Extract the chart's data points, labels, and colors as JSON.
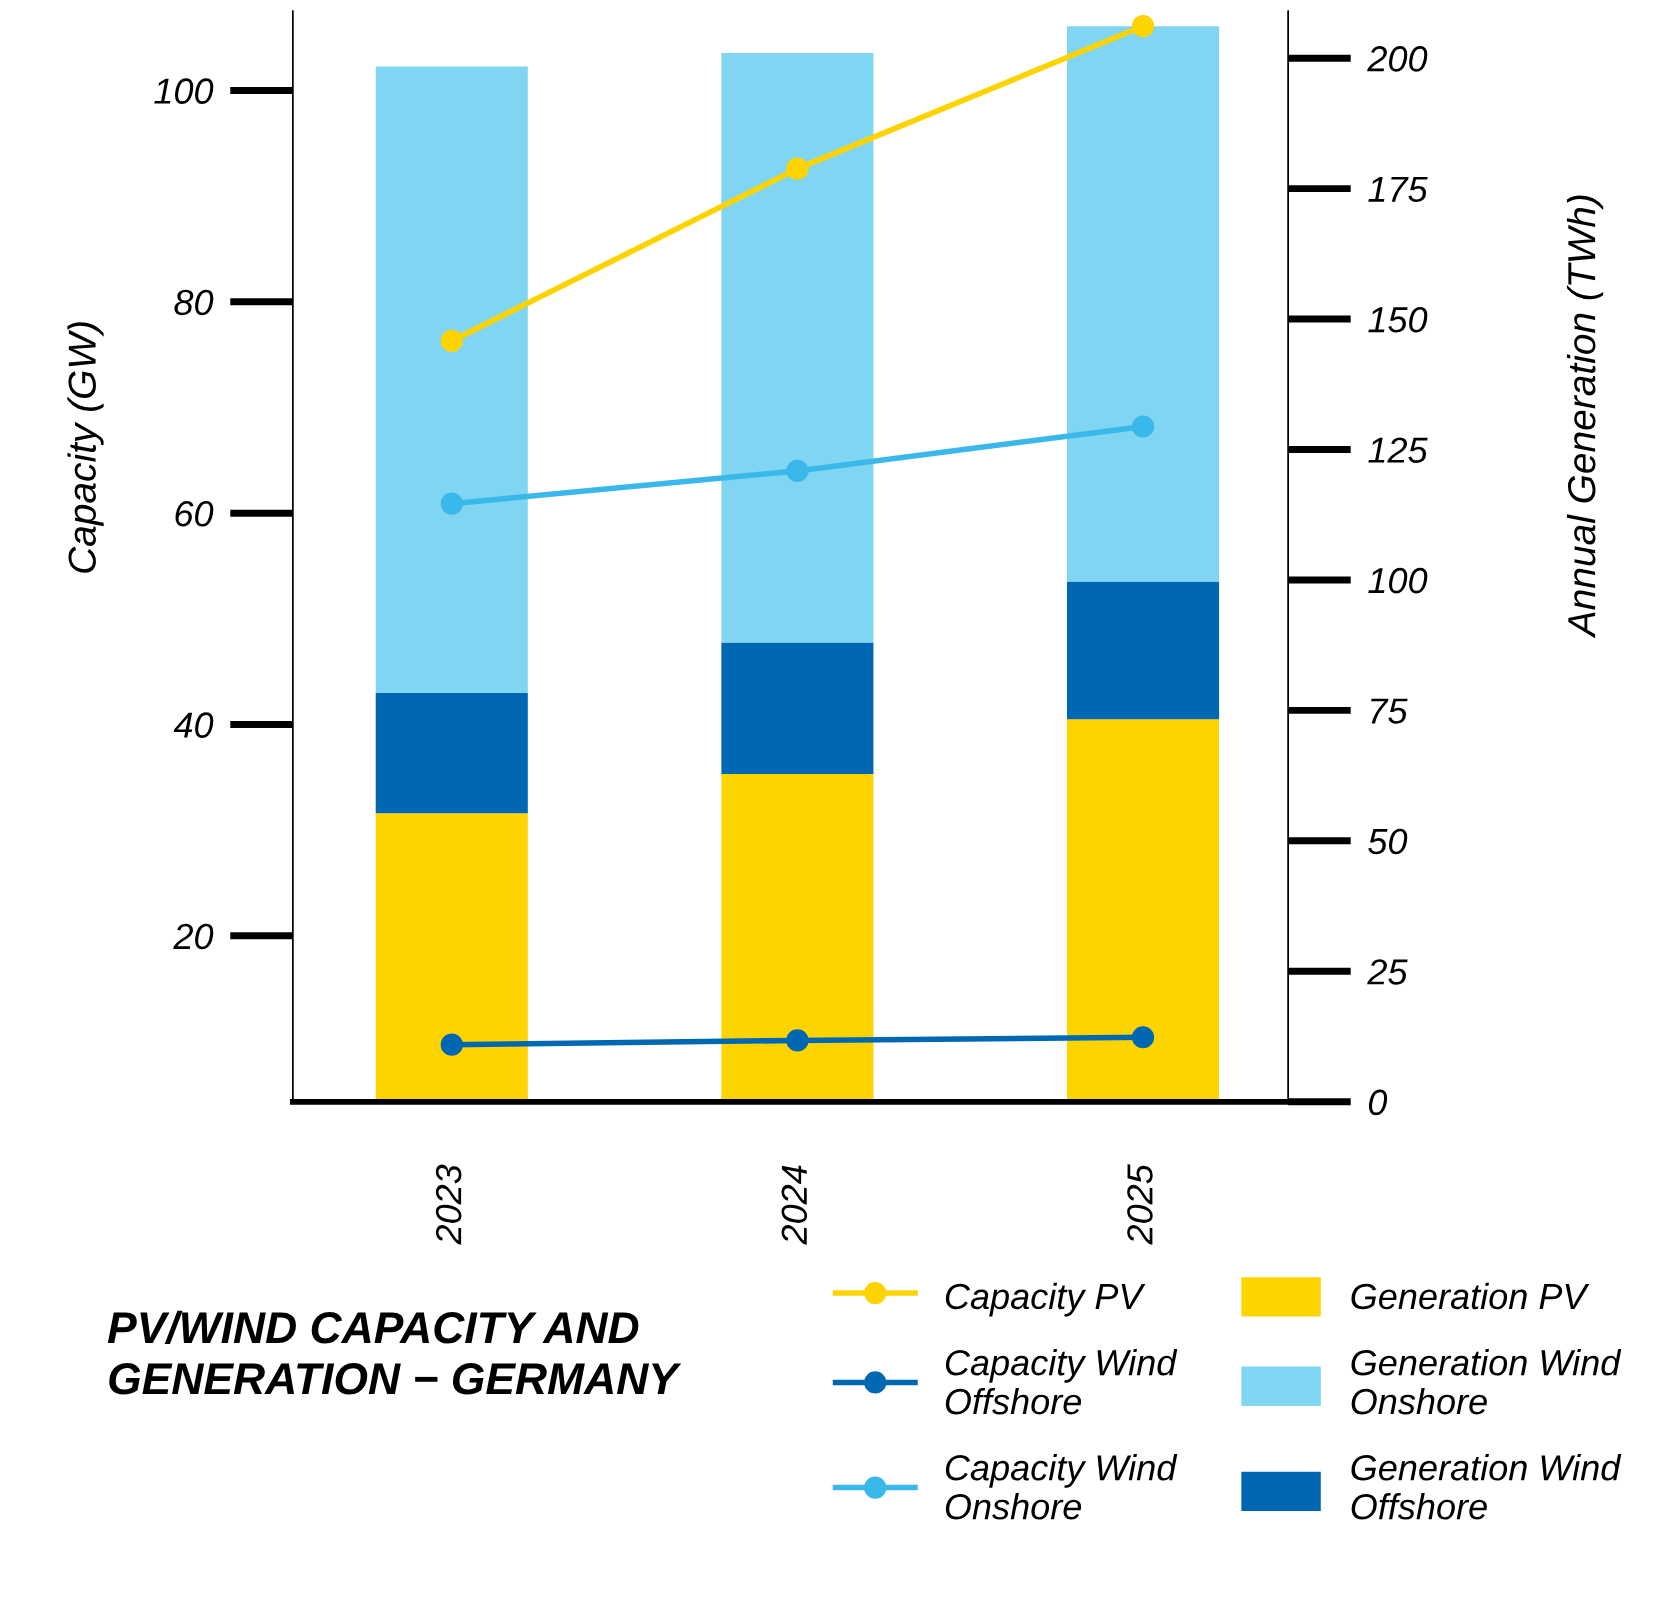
{
  "chart_data": {
    "type": "bar",
    "title": "PV/WIND CAPACITY AND GENERATION − GERMANY",
    "ylabel": "Capacity (GW)",
    "y2label": "Annual Generation (TWh)",
    "categories": [
      "2023",
      "2024",
      "2025"
    ],
    "stacked": true,
    "legend": "bottom",
    "grid": false,
    "marker": "circle",
    "line_style": "solid",
    "ylim": [
      4.3,
      107.5
    ],
    "yticks": [
      20,
      40,
      60,
      80,
      100
    ],
    "y2lim": [
      0,
      209
    ],
    "y2ticks": [
      0,
      25,
      50,
      75,
      100,
      125,
      150,
      175,
      200
    ],
    "series": [
      {
        "name": "Capacity PV",
        "type": "line",
        "axis": "y",
        "color": "#fdd300",
        "values": [
          76.3,
          92.6,
          106.1
        ]
      },
      {
        "name": "Capacity Wind Offshore",
        "type": "line",
        "axis": "y",
        "color": "#0068b3",
        "values": [
          9.7,
          10.1,
          10.4
        ]
      },
      {
        "name": "Capacity Wind Onshore",
        "type": "line",
        "axis": "y",
        "color": "#3ab8ea",
        "values": [
          60.9,
          64.0,
          68.2
        ]
      },
      {
        "name": "Generation PV",
        "axis": "y2",
        "color": "#fdd300",
        "values": [
          55.3,
          62.8,
          73.3
        ]
      },
      {
        "name": "Generation Wind Onshore",
        "axis": "y2",
        "color": "#80d5f3",
        "values": [
          120.0,
          113.0,
          106.4
        ]
      },
      {
        "name": "Generation Wind Offshore",
        "axis": "y2",
        "color": "#0068b3",
        "values": [
          23.1,
          25.2,
          26.4
        ]
      }
    ]
  }
}
